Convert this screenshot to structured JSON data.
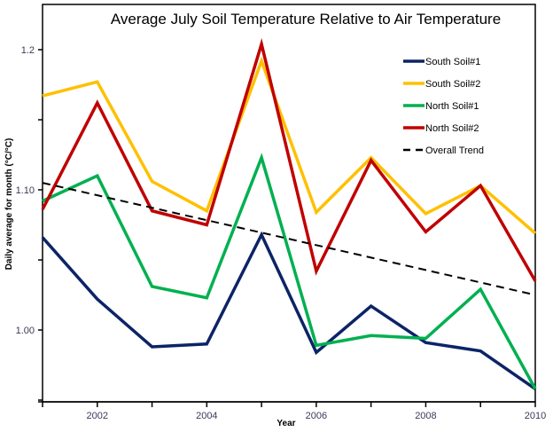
{
  "chart_data": {
    "type": "line",
    "title": "Average July Soil Temperature Relative to Air Temperature",
    "xlabel": "Year",
    "ylabel": "Daily average for month (°C/°C)",
    "x": [
      2001,
      2002,
      2003,
      2004,
      2005,
      2006,
      2007,
      2008,
      2009,
      2010
    ],
    "xlim": [
      2001,
      2010
    ],
    "ylim": [
      0.95,
      1.228
    ],
    "x_ticks": [
      2001,
      2002,
      2003,
      2004,
      2005,
      2006,
      2007,
      2008,
      2009,
      2010
    ],
    "x_tick_labels": [
      {
        "value": 2002,
        "label": "2002"
      },
      {
        "value": 2004,
        "label": "2004"
      },
      {
        "value": 2006,
        "label": "2006"
      },
      {
        "value": 2008,
        "label": "2008"
      },
      {
        "value": 2010,
        "label": "2010"
      }
    ],
    "y_ticks": [
      0.95,
      1.0,
      1.05,
      1.1,
      1.15,
      1.2
    ],
    "y_tick_labels": [
      {
        "value": 1.0,
        "label": "1.00"
      },
      {
        "value": 1.1,
        "label": "1.10"
      },
      {
        "value": 1.2,
        "label": "1.2"
      }
    ],
    "grid": false,
    "legend_position": "top-right",
    "series": [
      {
        "name": "South Soil#1",
        "color": "#0c2466",
        "dash": false,
        "values": [
          1.066,
          1.022,
          0.988,
          0.99,
          1.068,
          0.984,
          1.017,
          0.991,
          0.985,
          0.958
        ]
      },
      {
        "name": "South Soil#2",
        "color": "#ffc000",
        "dash": false,
        "values": [
          1.167,
          1.177,
          1.106,
          1.085,
          1.192,
          1.084,
          1.123,
          1.083,
          1.103,
          1.069
        ]
      },
      {
        "name": "North Soil#1",
        "color": "#00b050",
        "dash": false,
        "values": [
          1.092,
          1.11,
          1.031,
          1.023,
          1.123,
          0.989,
          0.996,
          0.994,
          1.029,
          0.958
        ]
      },
      {
        "name": "North Soil#2",
        "color": "#c00000",
        "dash": false,
        "values": [
          1.086,
          1.162,
          1.085,
          1.075,
          1.204,
          1.042,
          1.121,
          1.07,
          1.103,
          1.035
        ]
      },
      {
        "name": "Overall Trend",
        "color": "#000000",
        "dash": true,
        "x": [
          2001,
          2010
        ],
        "values": [
          1.105,
          1.025
        ]
      }
    ]
  }
}
